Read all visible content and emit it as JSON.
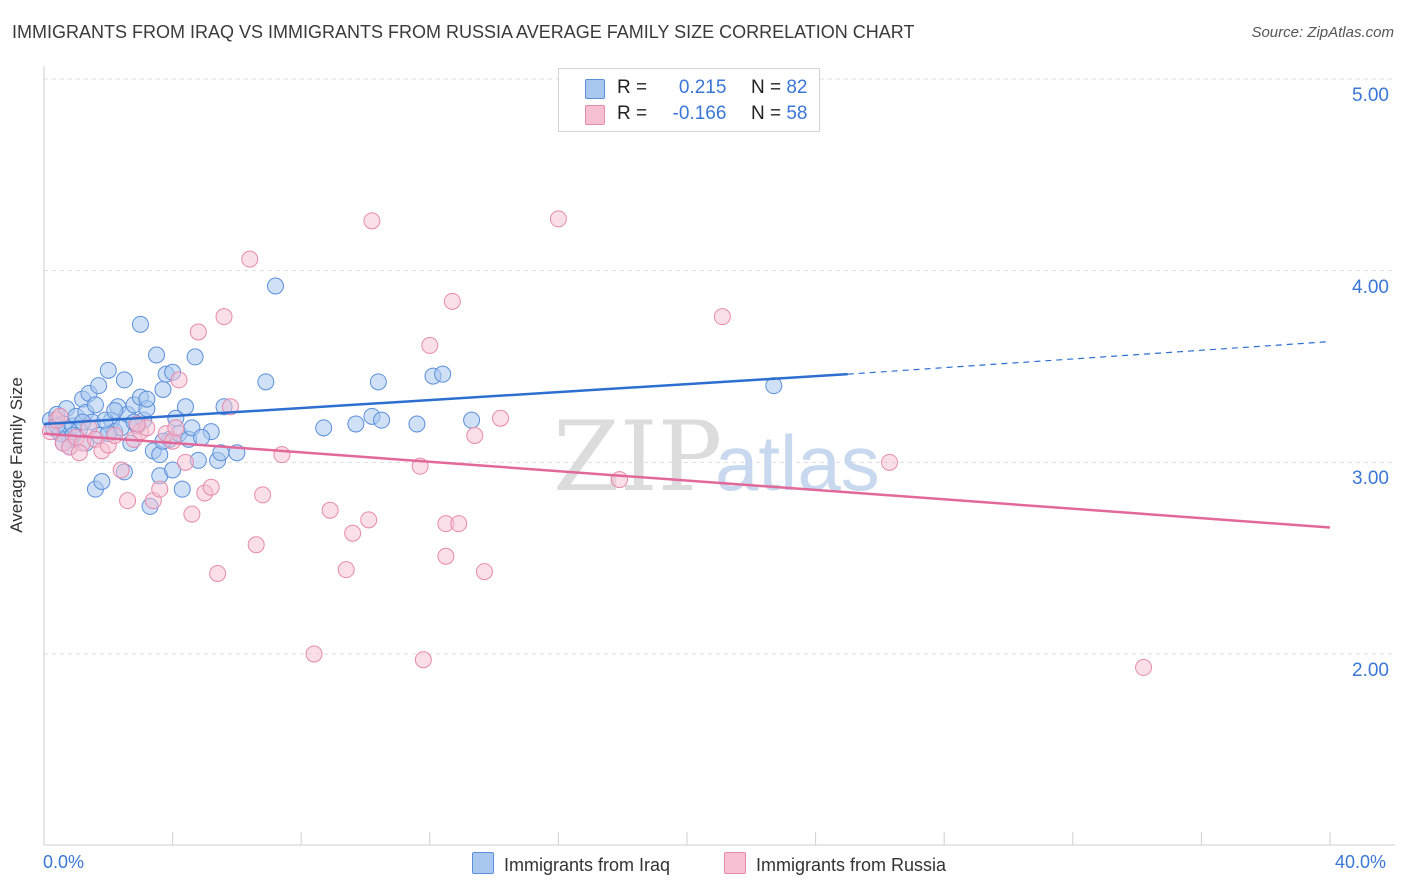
{
  "title": "IMMIGRANTS FROM IRAQ VS IMMIGRANTS FROM RUSSIA AVERAGE FAMILY SIZE CORRELATION CHART",
  "source": "Source: ZipAtlas.com",
  "watermark": {
    "zip": "ZIP",
    "atlas": "atlas"
  },
  "legend": {
    "iraq": {
      "r_label": "R =",
      "r_value": "0.215",
      "n_label": "N =",
      "n_value": "82"
    },
    "russia": {
      "r_label": "R =",
      "r_value": "-0.166",
      "n_label": "N =",
      "n_value": "58"
    }
  },
  "colors": {
    "iraq_fill": "#a9c8f0",
    "iraq_stroke": "#5b8fd9",
    "iraq_line": "#2d6fd0",
    "russia_fill": "#f6bfd2",
    "russia_stroke": "#e68aac",
    "russia_line": "#e2689a",
    "accent_text": "#3a77d6"
  },
  "chart_data": {
    "type": "scatter",
    "title": "IMMIGRANTS FROM IRAQ VS IMMIGRANTS FROM RUSSIA AVERAGE FAMILY SIZE CORRELATION CHART",
    "xlabel": "",
    "ylabel": "Average Family Size",
    "xlim": [
      0,
      40
    ],
    "ylim": [
      1.1,
      5.25
    ],
    "x_tick_labels": [
      "0.0%",
      "40.0%"
    ],
    "y_ticks": [
      2.0,
      3.0,
      4.0,
      5.0
    ],
    "y_tick_labels": [
      "2.00",
      "3.00",
      "4.00",
      "5.00"
    ],
    "grid": true,
    "legend_position": "top-center",
    "series": [
      {
        "name": "Immigrants from Iraq",
        "trend": {
          "x0": 0,
          "y0": 3.2,
          "x1": 25,
          "y1": 3.46,
          "dashed_to_x": 40,
          "dashed_to_y": 3.63
        },
        "points": [
          [
            0.2,
            3.22
          ],
          [
            0.3,
            3.18
          ],
          [
            0.4,
            3.25
          ],
          [
            0.5,
            3.15
          ],
          [
            0.6,
            3.2
          ],
          [
            0.7,
            3.28
          ],
          [
            0.8,
            3.12
          ],
          [
            0.9,
            3.19
          ],
          [
            1.0,
            3.24
          ],
          [
            1.1,
            3.17
          ],
          [
            1.2,
            3.33
          ],
          [
            1.3,
            3.26
          ],
          [
            1.4,
            3.36
          ],
          [
            1.5,
            3.21
          ],
          [
            1.6,
            3.3
          ],
          [
            1.7,
            3.14
          ],
          [
            1.6,
            2.86
          ],
          [
            1.8,
            2.9
          ],
          [
            1.7,
            3.4
          ],
          [
            2.0,
            3.48
          ],
          [
            2.1,
            3.22
          ],
          [
            2.2,
            3.16
          ],
          [
            2.3,
            3.29
          ],
          [
            2.4,
            3.18
          ],
          [
            2.5,
            3.43
          ],
          [
            2.6,
            3.25
          ],
          [
            2.7,
            3.1
          ],
          [
            2.8,
            3.3
          ],
          [
            2.9,
            3.19
          ],
          [
            3.0,
            3.34
          ],
          [
            3.1,
            3.22
          ],
          [
            3.2,
            3.28
          ],
          [
            3.3,
            2.77
          ],
          [
            3.4,
            3.06
          ],
          [
            3.5,
            3.56
          ],
          [
            3.6,
            3.04
          ],
          [
            3.7,
            3.38
          ],
          [
            3.8,
            3.46
          ],
          [
            3.9,
            3.12
          ],
          [
            4.0,
            3.47
          ],
          [
            4.1,
            3.23
          ],
          [
            4.2,
            3.15
          ],
          [
            4.3,
            2.86
          ],
          [
            4.4,
            3.29
          ],
          [
            4.5,
            3.12
          ],
          [
            4.6,
            3.18
          ],
          [
            4.7,
            3.55
          ],
          [
            4.8,
            3.01
          ],
          [
            5.4,
            3.01
          ],
          [
            5.6,
            3.29
          ],
          [
            5.5,
            3.05
          ],
          [
            6.0,
            3.05
          ],
          [
            6.9,
            3.42
          ],
          [
            7.2,
            3.92
          ],
          [
            8.7,
            3.18
          ],
          [
            9.7,
            3.2
          ],
          [
            10.4,
            3.42
          ],
          [
            10.2,
            3.24
          ],
          [
            10.5,
            3.22
          ],
          [
            11.6,
            3.2
          ],
          [
            12.1,
            3.45
          ],
          [
            12.4,
            3.46
          ],
          [
            13.3,
            3.22
          ],
          [
            22.7,
            3.4
          ],
          [
            2.0,
            3.15
          ],
          [
            0.8,
            3.08
          ],
          [
            1.2,
            3.21
          ],
          [
            1.9,
            3.22
          ],
          [
            0.4,
            3.19
          ],
          [
            3.0,
            3.72
          ],
          [
            2.5,
            2.95
          ],
          [
            3.6,
            2.93
          ],
          [
            4.0,
            2.96
          ],
          [
            2.2,
            3.27
          ],
          [
            1.3,
            3.1
          ],
          [
            0.6,
            3.1
          ],
          [
            0.9,
            3.14
          ],
          [
            2.8,
            3.21
          ],
          [
            3.2,
            3.33
          ],
          [
            3.7,
            3.11
          ],
          [
            5.2,
            3.16
          ],
          [
            4.9,
            3.13
          ]
        ]
      },
      {
        "name": "Immigrants from Russia",
        "trend": {
          "x0": 0,
          "y0": 3.15,
          "x1": 40,
          "y1": 2.66
        },
        "points": [
          [
            0.2,
            3.16
          ],
          [
            0.4,
            3.22
          ],
          [
            0.6,
            3.1
          ],
          [
            0.8,
            3.08
          ],
          [
            1.0,
            3.13
          ],
          [
            1.2,
            3.1
          ],
          [
            1.4,
            3.18
          ],
          [
            1.6,
            3.12
          ],
          [
            1.8,
            3.06
          ],
          [
            2.0,
            3.09
          ],
          [
            2.2,
            3.14
          ],
          [
            2.4,
            2.96
          ],
          [
            2.6,
            2.8
          ],
          [
            2.8,
            3.12
          ],
          [
            3.0,
            3.16
          ],
          [
            3.2,
            3.18
          ],
          [
            3.4,
            2.8
          ],
          [
            3.6,
            2.86
          ],
          [
            3.8,
            3.15
          ],
          [
            4.0,
            3.11
          ],
          [
            4.2,
            3.43
          ],
          [
            4.4,
            3.0
          ],
          [
            4.6,
            2.73
          ],
          [
            4.8,
            3.68
          ],
          [
            5.0,
            2.84
          ],
          [
            5.2,
            2.87
          ],
          [
            5.4,
            2.42
          ],
          [
            5.6,
            3.76
          ],
          [
            5.8,
            3.29
          ],
          [
            6.4,
            4.06
          ],
          [
            6.6,
            2.57
          ],
          [
            6.8,
            2.83
          ],
          [
            7.4,
            3.04
          ],
          [
            8.4,
            2.0
          ],
          [
            8.9,
            2.75
          ],
          [
            9.4,
            2.44
          ],
          [
            9.6,
            2.63
          ],
          [
            10.1,
            2.7
          ],
          [
            10.2,
            4.26
          ],
          [
            11.7,
            2.98
          ],
          [
            11.8,
            1.97
          ],
          [
            12.0,
            3.61
          ],
          [
            12.5,
            2.51
          ],
          [
            12.5,
            2.68
          ],
          [
            12.9,
            2.68
          ],
          [
            12.7,
            3.84
          ],
          [
            13.4,
            3.14
          ],
          [
            13.7,
            2.43
          ],
          [
            14.2,
            3.23
          ],
          [
            16.0,
            4.27
          ],
          [
            17.9,
            2.91
          ],
          [
            21.1,
            3.76
          ],
          [
            26.3,
            3.0
          ],
          [
            34.2,
            1.93
          ],
          [
            1.1,
            3.05
          ],
          [
            2.9,
            3.2
          ],
          [
            4.1,
            3.18
          ],
          [
            0.5,
            3.24
          ]
        ]
      }
    ]
  }
}
